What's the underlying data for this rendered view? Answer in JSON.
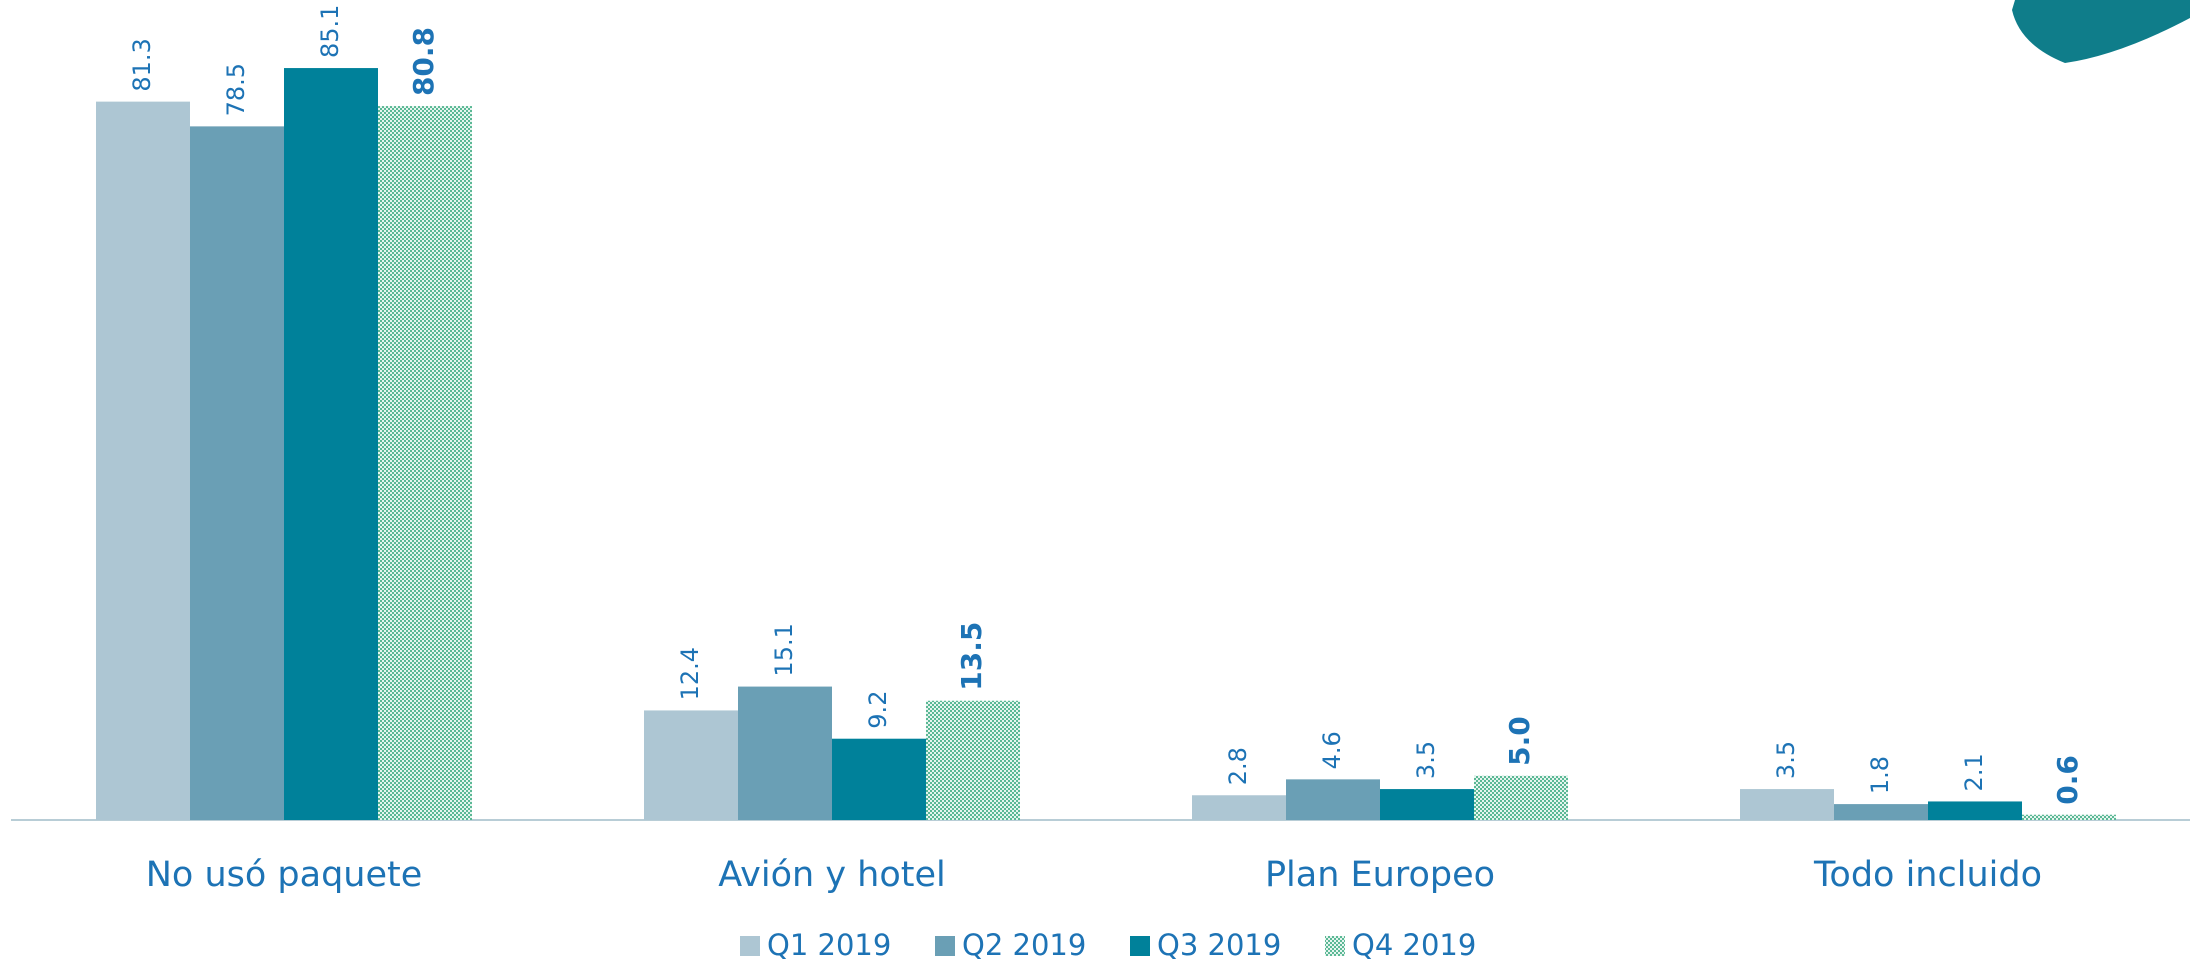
{
  "chart_data": {
    "type": "bar",
    "categories": [
      "No usó paquete",
      "Avión y hotel",
      "Plan Europeo",
      "Todo incluido"
    ],
    "series": [
      {
        "name": "Q1 2019",
        "color": "#adc6d3",
        "values": [
          81.3,
          12.4,
          2.8,
          3.5
        ]
      },
      {
        "name": "Q2 2019",
        "color": "#6a9fb5",
        "values": [
          78.5,
          15.1,
          4.6,
          1.8
        ]
      },
      {
        "name": "Q3 2019",
        "color": "#00819a",
        "values": [
          85.1,
          9.2,
          3.5,
          2.1
        ]
      },
      {
        "name": "Q4 2019",
        "color": "#7fcbb0",
        "values": [
          80.8,
          13.5,
          5.0,
          0.6
        ],
        "value_labels": [
          "80.8",
          "13.5",
          "5.0",
          "0.6"
        ]
      }
    ],
    "legend": "bottom"
  }
}
